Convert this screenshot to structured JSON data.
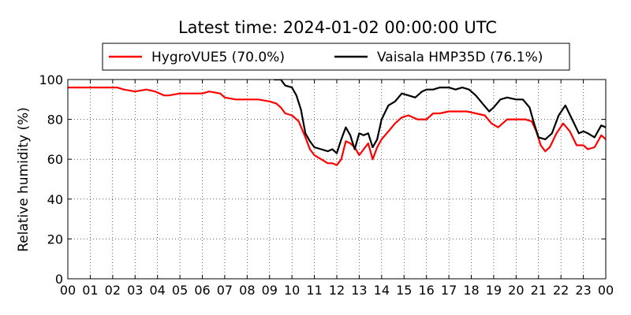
{
  "chart_data": {
    "type": "line",
    "title": "Latest time: 2024-01-02 00:00:00 UTC",
    "xlabel": "",
    "ylabel": "Relative humidity (%)",
    "xlim": [
      0,
      24
    ],
    "ylim": [
      0,
      100
    ],
    "xticks": [
      "00",
      "01",
      "02",
      "03",
      "04",
      "05",
      "06",
      "07",
      "08",
      "09",
      "10",
      "11",
      "12",
      "13",
      "14",
      "15",
      "16",
      "17",
      "18",
      "19",
      "20",
      "21",
      "22",
      "23",
      "00"
    ],
    "yticks": [
      "0",
      "20",
      "40",
      "60",
      "80",
      "100"
    ],
    "grid": true,
    "legend_position": "top-center",
    "series": [
      {
        "name": "HygroVUE5 (70.0%)",
        "color": "#ff0000",
        "x": [
          0,
          1.5,
          2.2,
          2.5,
          3,
          3.5,
          3.9,
          4.3,
          4.5,
          5,
          5.5,
          6,
          6.3,
          6.8,
          7,
          7.5,
          8,
          8.5,
          9,
          9.3,
          9.5,
          9.7,
          10,
          10.3,
          10.6,
          10.8,
          11,
          11.3,
          11.6,
          11.8,
          12,
          12.2,
          12.4,
          12.6,
          12.8,
          13,
          13.2,
          13.4,
          13.6,
          13.8,
          14,
          14.3,
          14.6,
          14.9,
          15.2,
          15.6,
          16,
          16.3,
          16.6,
          17,
          17.4,
          17.8,
          18.2,
          18.6,
          18.9,
          19.2,
          19.6,
          20,
          20.4,
          20.7,
          20.9,
          21.1,
          21.3,
          21.5,
          21.8,
          22.1,
          22.4,
          22.7,
          23,
          23.2,
          23.5,
          23.8,
          24
        ],
        "y": [
          96,
          96,
          96,
          95,
          94,
          95,
          94,
          92,
          92,
          93,
          93,
          93,
          94,
          93,
          91,
          90,
          90,
          90,
          89,
          88,
          86,
          83,
          82,
          79,
          71,
          65,
          62,
          60,
          58,
          58,
          57,
          60,
          69,
          68,
          66,
          62,
          65,
          68,
          60,
          66,
          70,
          74,
          78,
          81,
          82,
          80,
          80,
          83,
          83,
          84,
          84,
          84,
          83,
          82,
          78,
          76,
          80,
          80,
          80,
          79,
          74,
          67,
          64,
          66,
          73,
          78,
          74,
          67,
          67,
          65,
          66,
          72,
          70
        ]
      },
      {
        "name": "Vaisala HMP35D (76.1%)",
        "color": "#000000",
        "x": [
          9.2,
          9.5,
          9.7,
          10,
          10.2,
          10.4,
          10.6,
          10.8,
          11,
          11.3,
          11.6,
          11.8,
          12,
          12.2,
          12.4,
          12.6,
          12.8,
          13,
          13.2,
          13.4,
          13.6,
          13.8,
          14,
          14.3,
          14.6,
          14.9,
          15.2,
          15.5,
          15.8,
          16,
          16.3,
          16.6,
          17,
          17.3,
          17.6,
          17.9,
          18.2,
          18.5,
          18.8,
          19,
          19.3,
          19.6,
          20,
          20.3,
          20.6,
          20.8,
          21,
          21.3,
          21.6,
          21.9,
          22.2,
          22.5,
          22.8,
          23,
          23.2,
          23.5,
          23.8,
          24
        ],
        "y": [
          100,
          100,
          97,
          96,
          92,
          85,
          73,
          69,
          66,
          65,
          64,
          65,
          63,
          70,
          76,
          72,
          65,
          73,
          72,
          73,
          66,
          70,
          80,
          87,
          89,
          93,
          92,
          91,
          94,
          95,
          95,
          96,
          96,
          95,
          96,
          95,
          92,
          88,
          84,
          86,
          90,
          91,
          90,
          90,
          86,
          78,
          71,
          70,
          73,
          82,
          87,
          80,
          73,
          74,
          73,
          71,
          77,
          76
        ]
      }
    ]
  }
}
